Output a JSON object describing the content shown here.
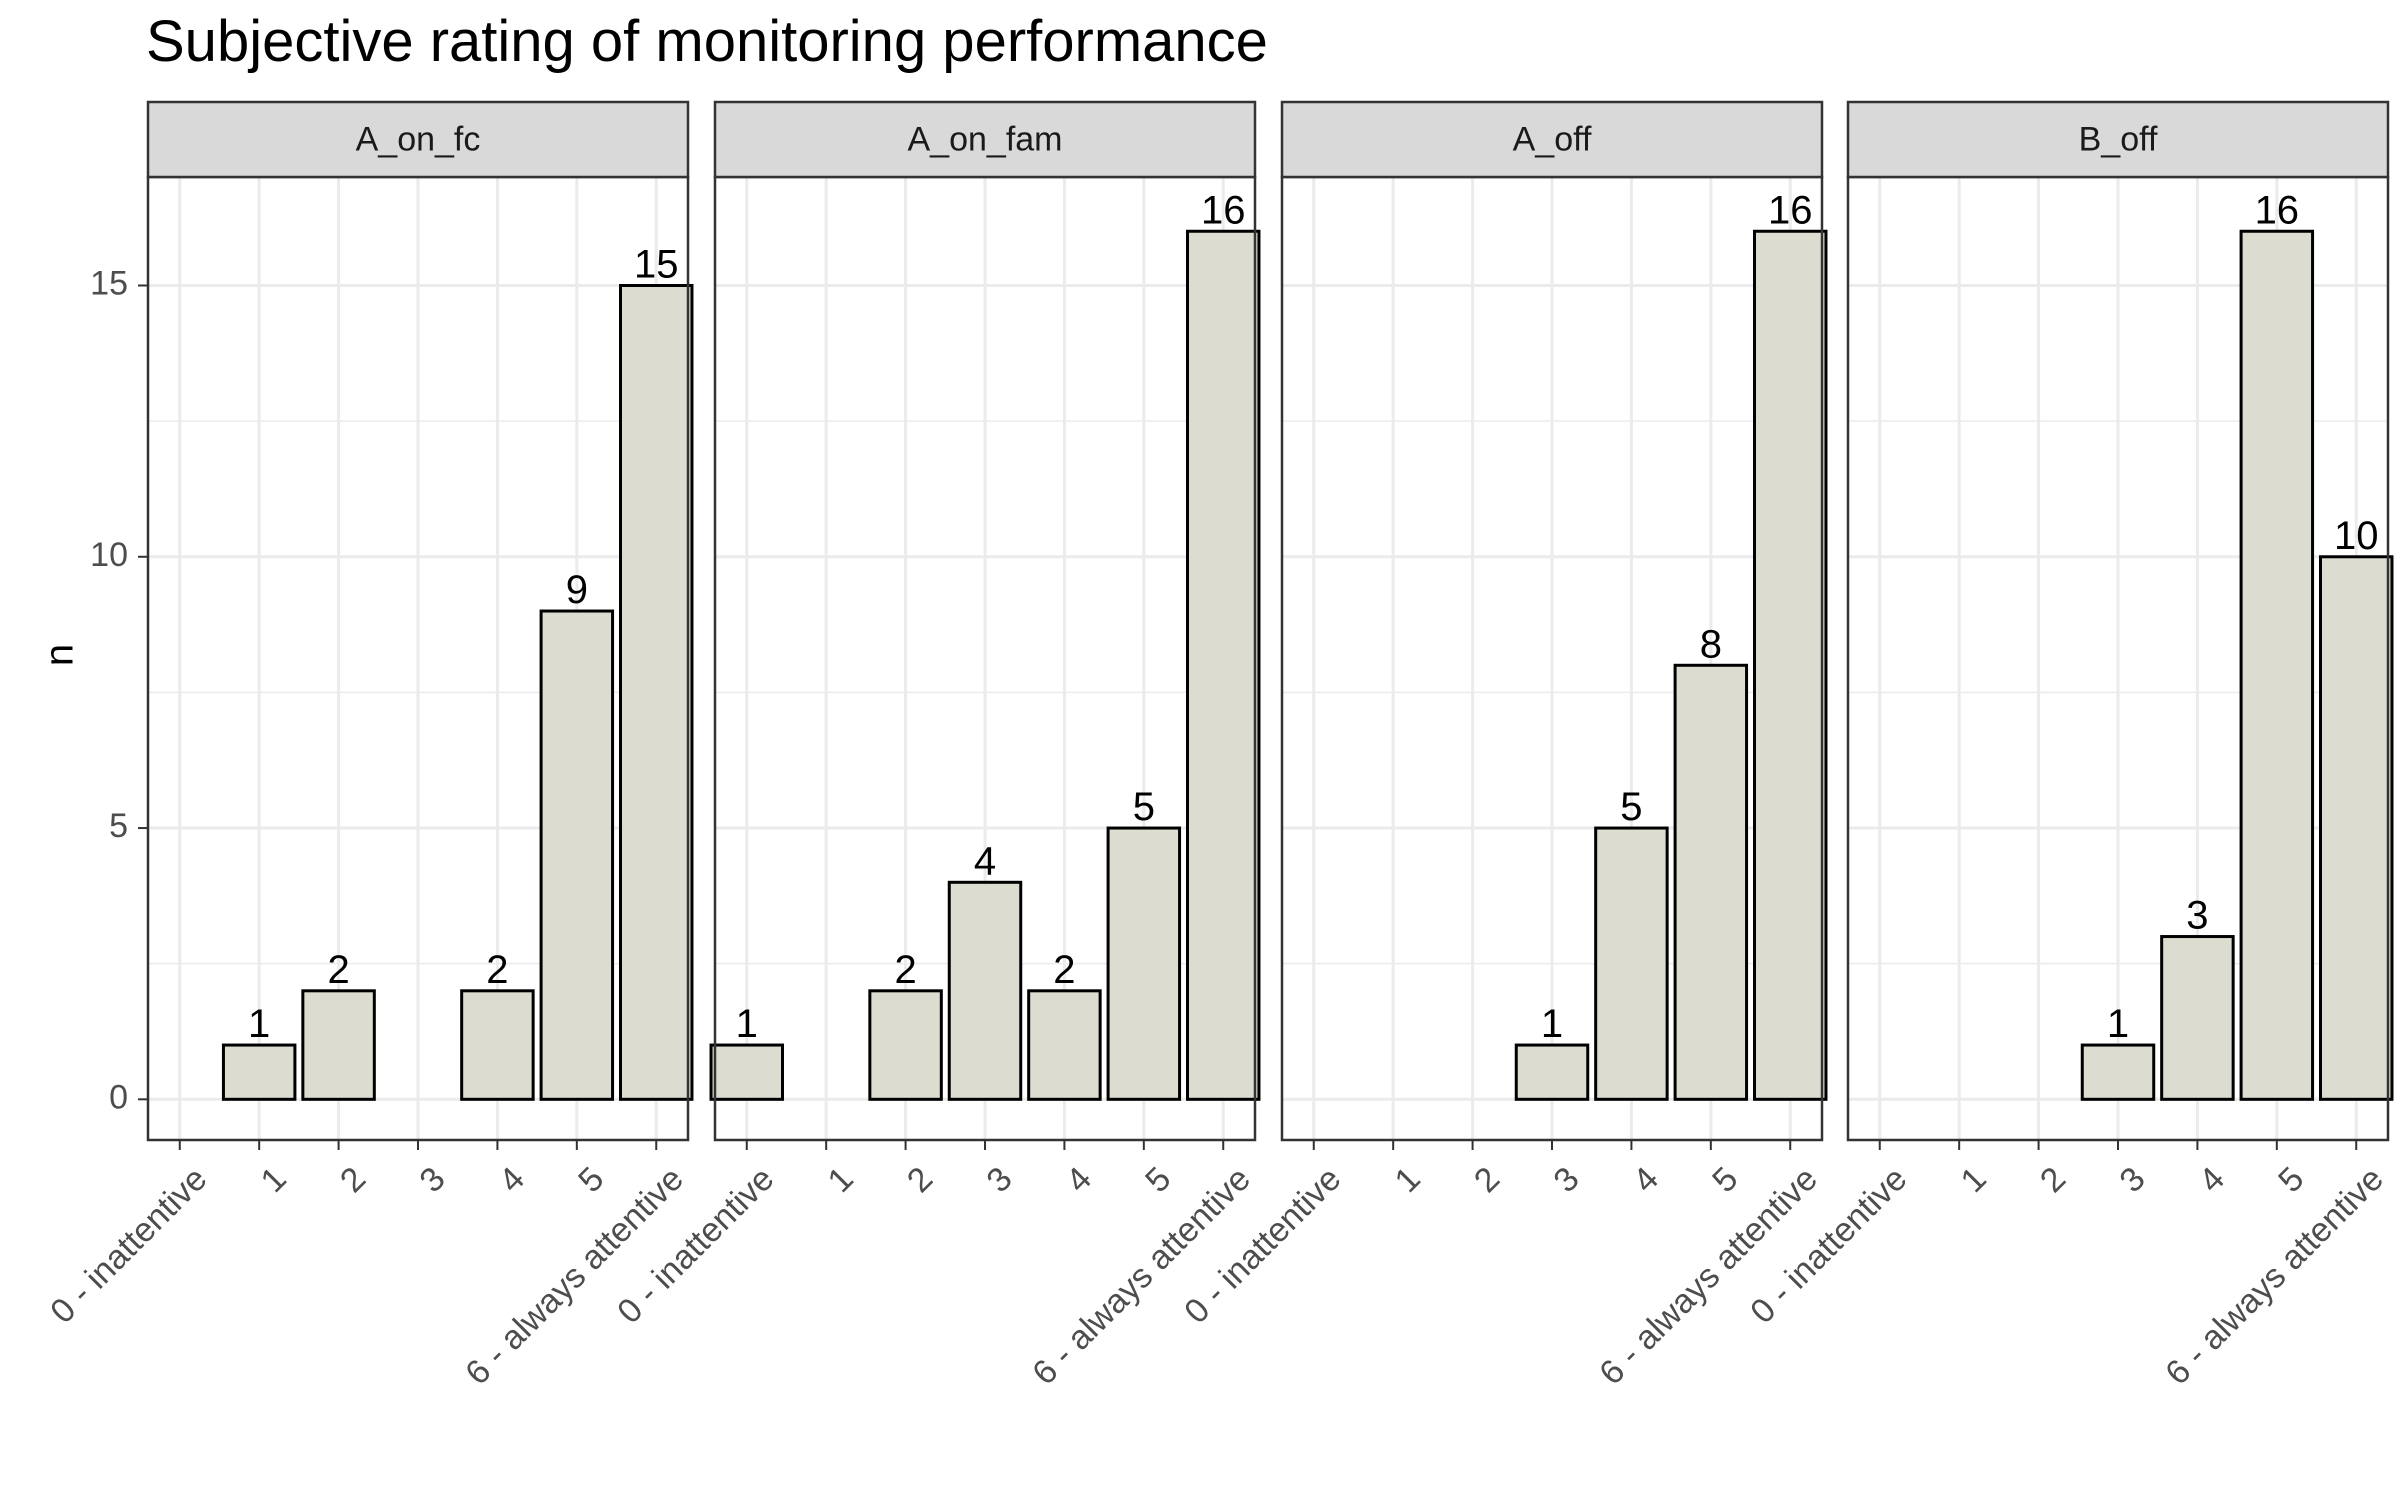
{
  "chart_data": {
    "type": "bar",
    "title": "Subjective rating of monitoring performance",
    "xlabel": "",
    "ylabel": "n",
    "categories": [
      "0 - inattentive",
      "1",
      "2",
      "3",
      "4",
      "5",
      "6 - always attentive"
    ],
    "ylim": [
      -0.75,
      17
    ],
    "yticks": [
      0,
      5,
      10,
      15
    ],
    "grid": true,
    "legend": "none",
    "colors": {
      "bar_fill": "#dcdcd0",
      "bar_stroke": "#000000",
      "strip_fill": "#d9d9d9",
      "grid": "#ebebeb",
      "panel_border": "#333333",
      "tick_text": "#4d4d4d"
    },
    "panels": [
      {
        "name": "A_on_fc",
        "values": [
          0,
          1,
          2,
          0,
          2,
          9,
          15
        ]
      },
      {
        "name": "A_on_fam",
        "values": [
          1,
          0,
          2,
          4,
          2,
          5,
          16
        ]
      },
      {
        "name": "A_off",
        "values": [
          0,
          0,
          0,
          1,
          5,
          8,
          16
        ]
      },
      {
        "name": "B_off",
        "values": [
          0,
          0,
          0,
          1,
          3,
          16,
          10
        ]
      }
    ]
  }
}
